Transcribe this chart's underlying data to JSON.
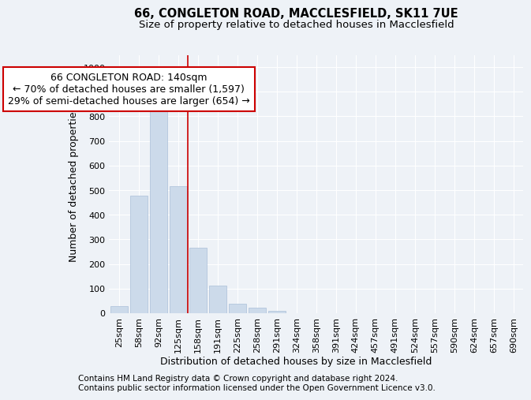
{
  "title": "66, CONGLETON ROAD, MACCLESFIELD, SK11 7UE",
  "subtitle": "Size of property relative to detached houses in Macclesfield",
  "xlabel": "Distribution of detached houses by size in Macclesfield",
  "ylabel": "Number of detached properties",
  "categories": [
    "25sqm",
    "58sqm",
    "92sqm",
    "125sqm",
    "158sqm",
    "191sqm",
    "225sqm",
    "258sqm",
    "291sqm",
    "324sqm",
    "358sqm",
    "391sqm",
    "424sqm",
    "457sqm",
    "491sqm",
    "524sqm",
    "557sqm",
    "590sqm",
    "624sqm",
    "657sqm",
    "690sqm"
  ],
  "values": [
    30,
    478,
    820,
    515,
    265,
    112,
    37,
    22,
    10,
    0,
    0,
    0,
    0,
    0,
    0,
    0,
    0,
    0,
    0,
    0,
    0
  ],
  "bar_color": "#ccdaea",
  "bar_edge_color": "#aabfd8",
  "vline_x": 3.5,
  "vline_color": "#cc0000",
  "ylim": [
    0,
    1050
  ],
  "yticks": [
    0,
    100,
    200,
    300,
    400,
    500,
    600,
    700,
    800,
    900,
    1000
  ],
  "annotation_title": "66 CONGLETON ROAD: 140sqm",
  "annotation_line1": "← 70% of detached houses are smaller (1,597)",
  "annotation_line2": "29% of semi-detached houses are larger (654) →",
  "annotation_box_color": "#cc0000",
  "footnote1": "Contains HM Land Registry data © Crown copyright and database right 2024.",
  "footnote2": "Contains public sector information licensed under the Open Government Licence v3.0.",
  "bg_color": "#eef2f7",
  "plot_bg_color": "#eef2f7",
  "grid_color": "#ffffff",
  "title_fontsize": 10.5,
  "subtitle_fontsize": 9.5,
  "axis_label_fontsize": 9,
  "tick_fontsize": 8,
  "annotation_fontsize": 9,
  "footnote_fontsize": 7.5
}
